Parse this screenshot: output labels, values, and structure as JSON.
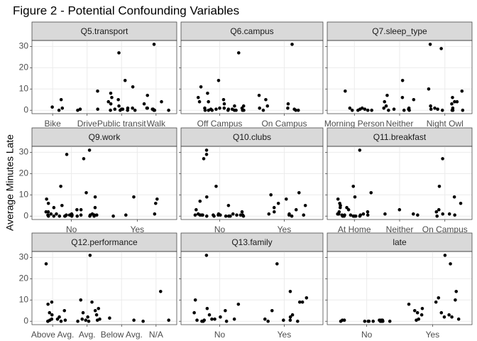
{
  "chart_data": {
    "type": "strip",
    "title": "Figure 2 - Potential Confounding Variables",
    "y_label": "Average Minutes Late",
    "ylim": [
      -1.6,
      32.8
    ],
    "yticks": [
      0,
      10,
      20,
      30
    ],
    "grid": true,
    "color": "#000000",
    "facets": [
      {
        "title": "Q5.transport",
        "categories": [
          "Bike",
          "Drive",
          "Public transit",
          "Walk"
        ],
        "values": [
          [
            5,
            1,
            0,
            1.5
          ],
          [
            9,
            0.5,
            0,
            0.5
          ],
          [
            27,
            14,
            11,
            8,
            6,
            5,
            4,
            3,
            2,
            1,
            1,
            0.5,
            0.5,
            0,
            0,
            0,
            0.5,
            0
          ],
          [
            31,
            7,
            4,
            3,
            1,
            1,
            0.5,
            0.5,
            0,
            0,
            0
          ]
        ]
      },
      {
        "title": "Q6.campus",
        "categories": [
          "Off Campus",
          "On Campus"
        ],
        "values": [
          [
            27,
            14,
            11,
            8,
            6,
            5,
            4,
            4,
            3,
            2,
            2,
            1,
            1,
            1,
            1,
            0.5,
            0.5,
            0.5,
            0.5,
            0,
            0,
            0,
            0,
            0,
            0,
            0,
            0
          ],
          [
            31,
            7,
            5,
            3,
            2,
            1,
            1,
            0.5,
            0,
            0,
            0
          ]
        ]
      },
      {
        "title": "Q7.sleep_type",
        "categories": [
          "Morning Person",
          "Neither",
          "Night Owl"
        ],
        "values": [
          [
            9,
            1,
            1,
            0.5,
            0.5,
            0,
            0,
            0,
            0
          ],
          [
            14,
            7,
            6,
            5,
            4,
            2,
            1,
            1,
            0.5,
            0.5,
            0,
            0,
            0
          ],
          [
            31,
            29,
            10,
            9,
            6,
            4,
            4,
            3,
            2,
            1,
            1,
            0.5,
            0.5,
            0,
            0,
            0,
            0
          ]
        ]
      },
      {
        "title": "Q9.work",
        "categories": [
          "No",
          "Yes"
        ],
        "values": [
          [
            31,
            29,
            27,
            14,
            11,
            9,
            8,
            6,
            5,
            4,
            4,
            3,
            3,
            2,
            2,
            1,
            1,
            1,
            1,
            0.5,
            0.5,
            0.5,
            0.5,
            0.5,
            0.5,
            0,
            0,
            0,
            0,
            0,
            0,
            0,
            0,
            0.5,
            0.5,
            0
          ],
          [
            9,
            8,
            6,
            1,
            0.5,
            0
          ]
        ]
      },
      {
        "title": "Q10.clubs",
        "categories": [
          "No",
          "Yes"
        ],
        "values": [
          [
            31,
            29,
            27,
            14,
            9,
            7,
            5,
            3,
            2,
            1,
            1,
            1,
            0.5,
            0.5,
            0.5,
            0.5,
            0.5,
            0.5,
            0.5,
            0.5,
            0.5,
            0.5,
            0,
            0,
            0,
            0,
            0,
            0
          ],
          [
            11,
            10,
            8,
            6,
            5,
            4,
            3,
            2,
            1,
            1,
            0.5,
            0.5,
            0
          ]
        ]
      },
      {
        "title": "Q11.breakfast",
        "categories": [
          "At Home",
          "Neither",
          "On Campus"
        ],
        "values": [
          [
            31,
            14,
            11,
            9,
            8,
            6,
            5,
            4,
            4,
            3,
            2,
            2,
            1,
            1,
            1,
            0.5,
            0.5,
            0.5,
            0.5,
            0.5,
            0,
            0,
            0,
            0,
            0,
            0
          ],
          [
            3,
            1,
            1,
            0.5
          ],
          [
            27,
            14,
            9,
            6,
            3,
            2,
            1,
            1,
            0.5,
            0
          ]
        ]
      },
      {
        "title": "Q12.performance",
        "categories": [
          "Above Avg.",
          "Avg.",
          "Below Avg.",
          "N/A"
        ],
        "values": [
          [
            27,
            9,
            8,
            5,
            4,
            3,
            2,
            1,
            1,
            0.5,
            0.5,
            0,
            0,
            0
          ],
          [
            31,
            10,
            9,
            6,
            5,
            4,
            3,
            2,
            1,
            1,
            0.5,
            0.5,
            0,
            0
          ],
          [
            1.5,
            0.5
          ],
          [
            14,
            0.5,
            0
          ]
        ]
      },
      {
        "title": "Q13.family",
        "categories": [
          "No",
          "Yes"
        ],
        "values": [
          [
            31,
            10,
            8,
            6,
            5,
            4,
            3,
            2,
            1,
            1,
            1,
            0.5,
            0.5,
            0,
            0,
            0
          ],
          [
            27,
            14,
            11,
            9,
            9,
            5,
            3,
            2,
            1,
            0.5,
            0.5,
            0,
            0
          ]
        ]
      },
      {
        "title": "late",
        "categories": [
          "No",
          "Yes"
        ],
        "values": [
          [
            0.5,
            0,
            0,
            0.5,
            0,
            0,
            0,
            0.5,
            0,
            0.5,
            0,
            0,
            0.5,
            0,
            0
          ],
          [
            31,
            27,
            14,
            11,
            10,
            9,
            8,
            6,
            5,
            4,
            4,
            3,
            3,
            2,
            2,
            1,
            1,
            0.5
          ]
        ]
      }
    ]
  }
}
